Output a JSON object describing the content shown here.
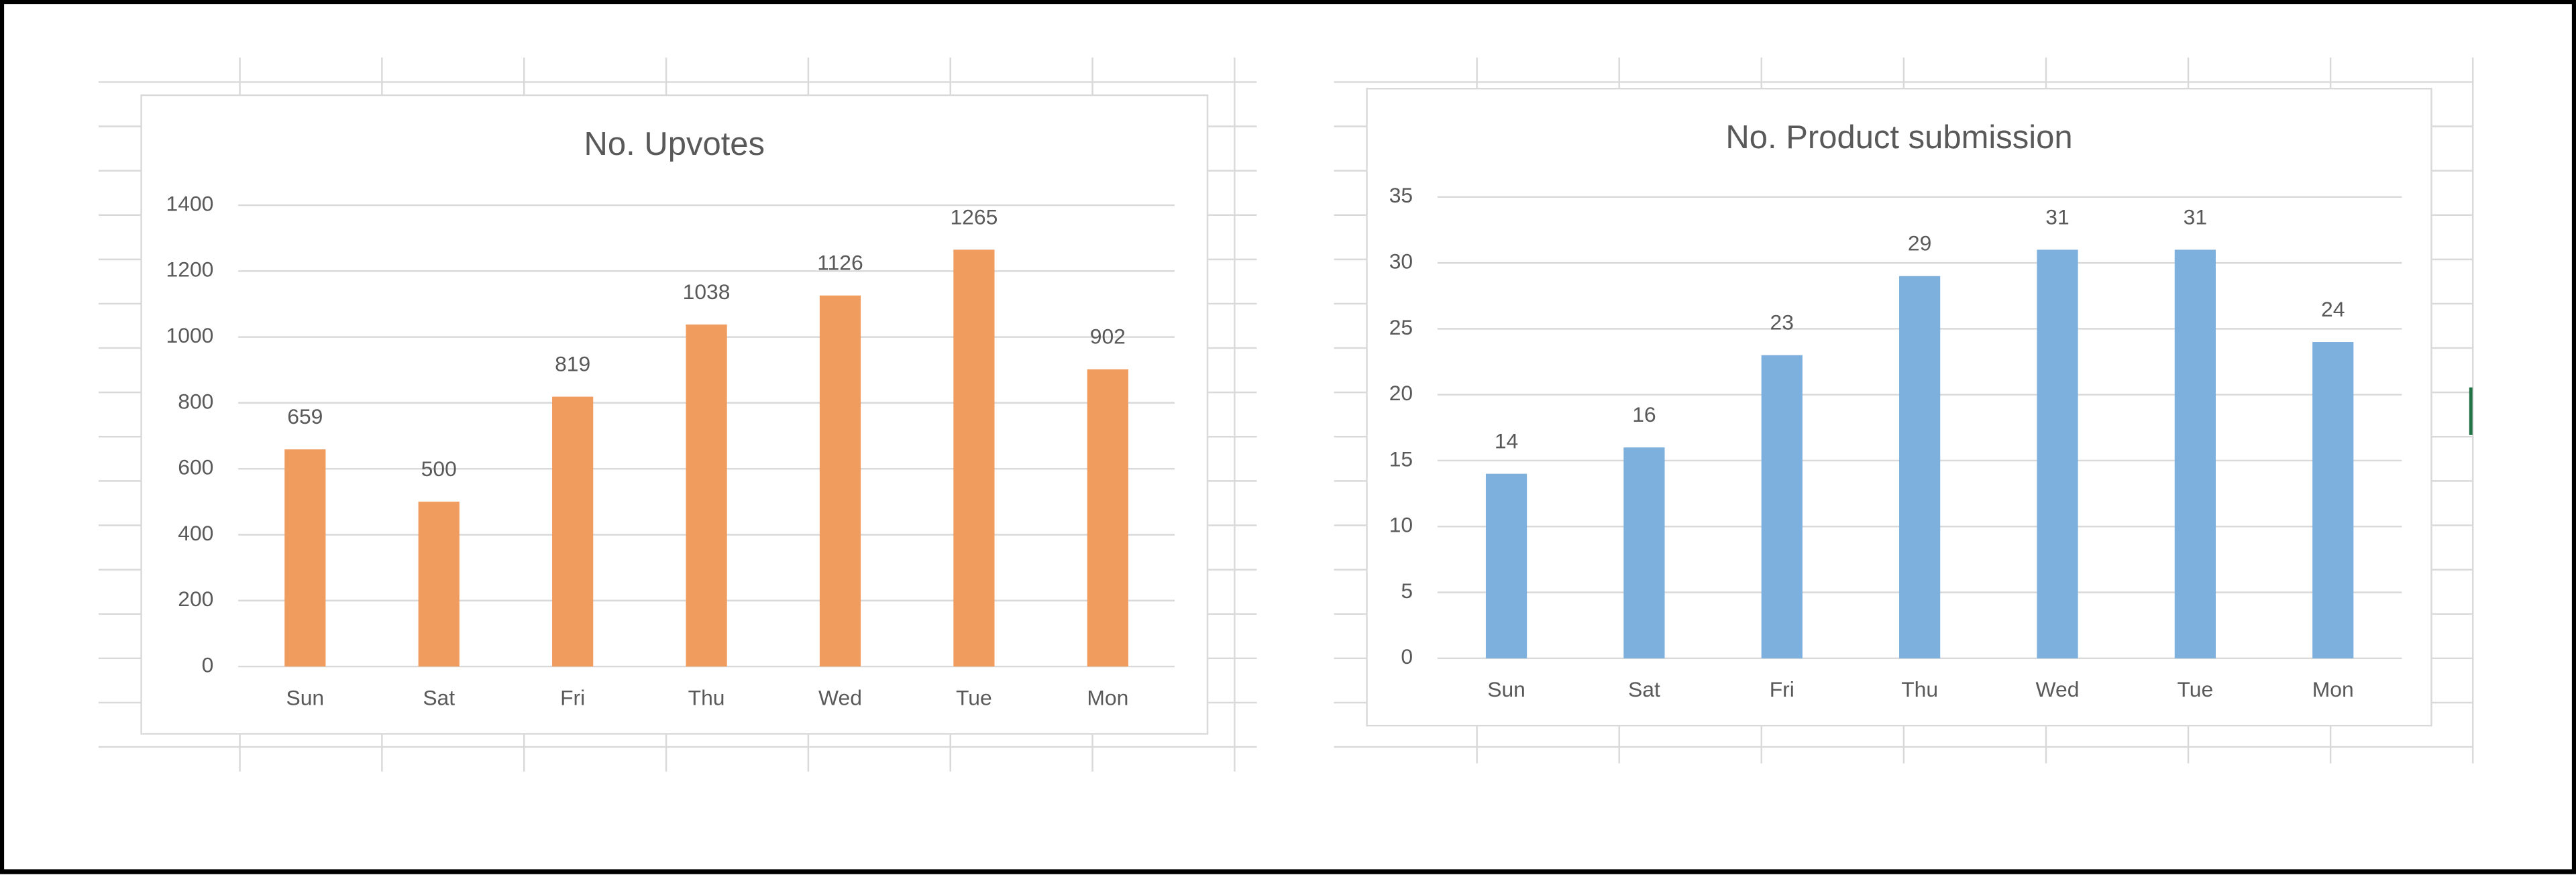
{
  "chart_data": [
    {
      "type": "bar",
      "title": "No. Upvotes",
      "categories": [
        "Sun",
        "Sat",
        "Fri",
        "Thu",
        "Wed",
        "Tue",
        "Mon"
      ],
      "values": [
        659,
        500,
        819,
        1038,
        1126,
        1265,
        902
      ],
      "color": "#f19c5f",
      "ylim": [
        0,
        1400
      ],
      "yticks": [
        0,
        200,
        400,
        600,
        800,
        1000,
        1200,
        1400
      ],
      "grid": true
    },
    {
      "type": "bar",
      "title": "No. Product submission",
      "categories": [
        "Sun",
        "Sat",
        "Fri",
        "Thu",
        "Wed",
        "Tue",
        "Mon"
      ],
      "values": [
        14,
        16,
        23,
        29,
        31,
        31,
        24
      ],
      "color": "#7eb0de",
      "ylim": [
        0,
        35
      ],
      "yticks": [
        0,
        5,
        10,
        15,
        20,
        25,
        30,
        35
      ],
      "grid": true
    }
  ]
}
